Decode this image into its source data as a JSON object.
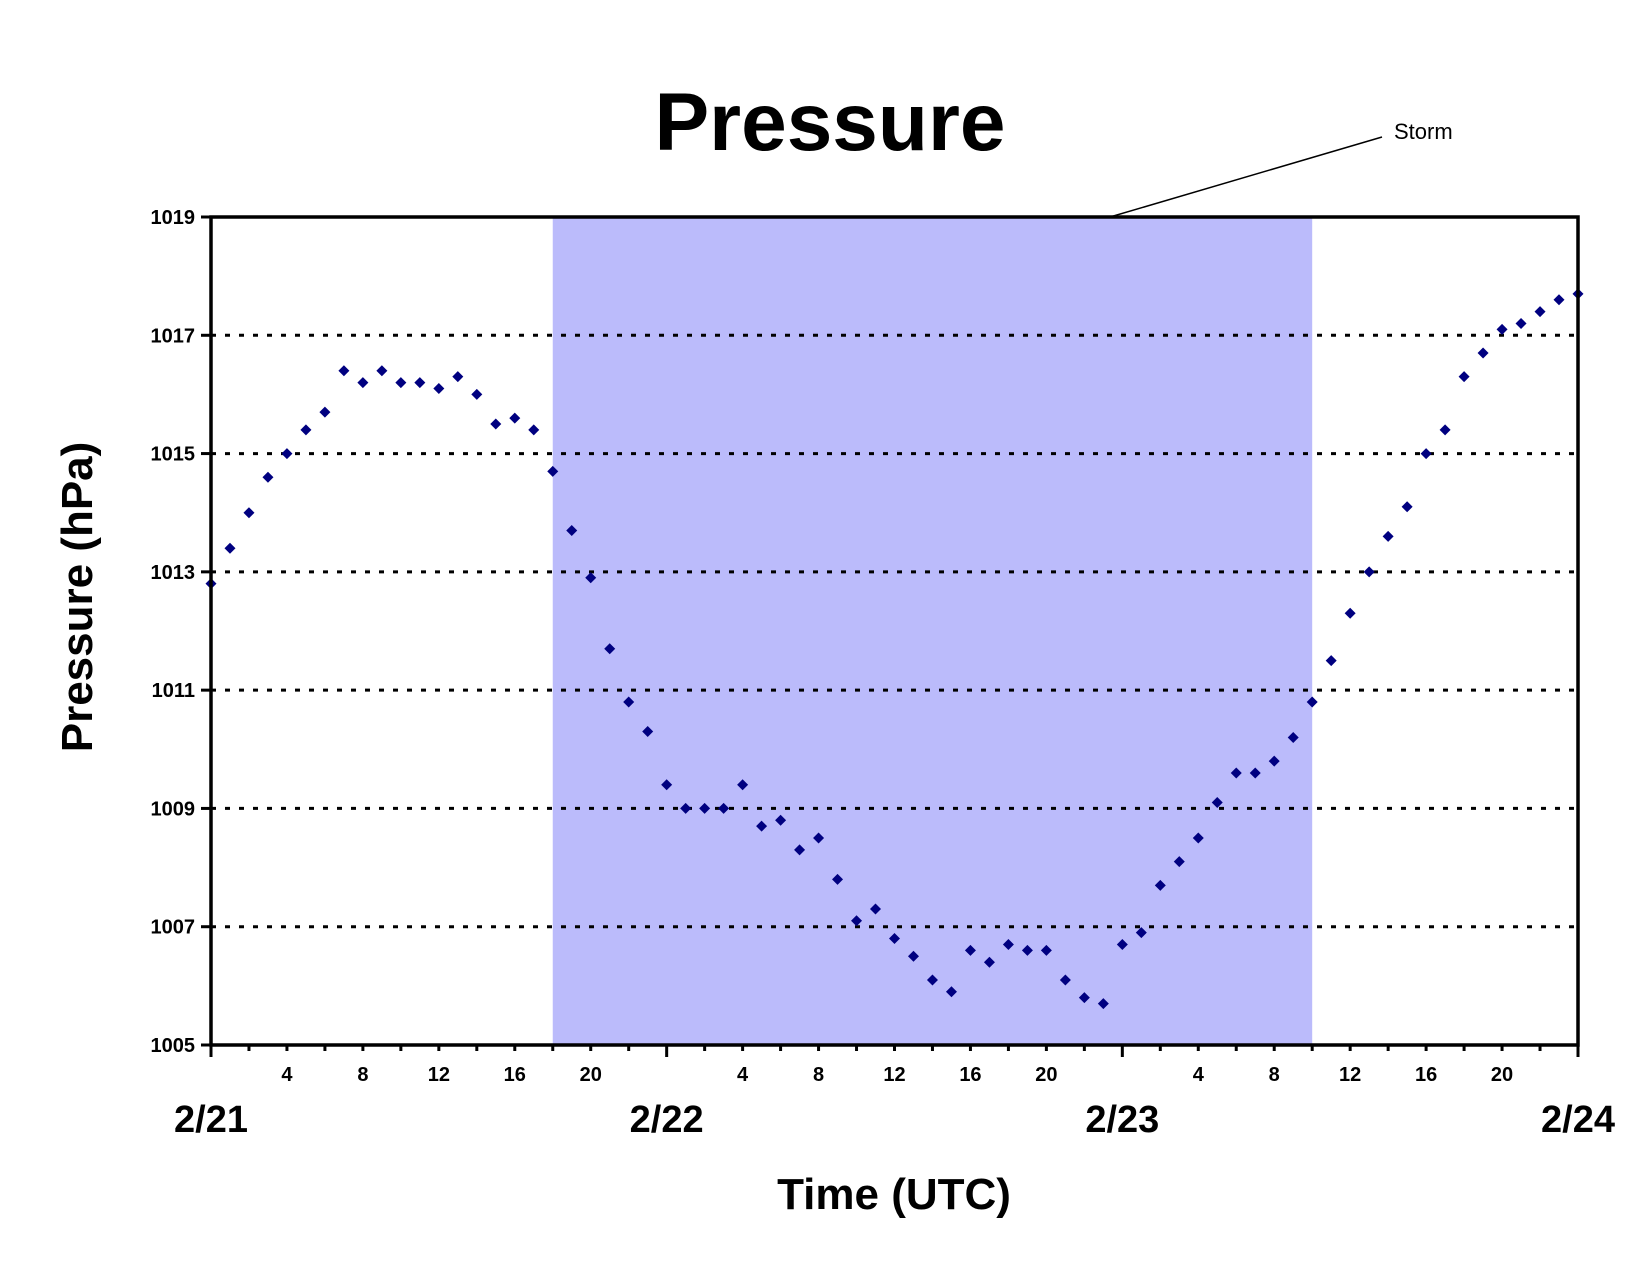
{
  "colors": {
    "storm_band": "#bbbbfb",
    "marker": "#000080",
    "axis": "#000000",
    "background": "#ffffff"
  },
  "chart_data": {
    "type": "scatter",
    "title": "Pressure",
    "xlabel": "Time (UTC)",
    "ylabel": "Pressure (hPa)",
    "ylim": [
      1005,
      1019
    ],
    "yticks": [
      1005,
      1007,
      1009,
      1011,
      1013,
      1015,
      1017,
      1019
    ],
    "grid": "horizontal dotted",
    "x_unit": "hour (UTC)",
    "xlim": [
      "2/21 00",
      "2/24 00"
    ],
    "hour_tick_labels": [
      "4",
      "8",
      "12",
      "16",
      "20"
    ],
    "date_labels": [
      "2/21",
      "2/22",
      "2/23",
      "2/24"
    ],
    "shaded_region": {
      "label": "Storm",
      "from": "2/21 18",
      "to": "2/23 10"
    },
    "series": [
      {
        "marker": "diamond",
        "points": [
          [
            "2/21 00",
            1012.8
          ],
          [
            "2/21 01",
            1013.4
          ],
          [
            "2/21 02",
            1014.0
          ],
          [
            "2/21 03",
            1014.6
          ],
          [
            "2/21 04",
            1015.0
          ],
          [
            "2/21 05",
            1015.4
          ],
          [
            "2/21 06",
            1015.7
          ],
          [
            "2/21 07",
            1016.4
          ],
          [
            "2/21 08",
            1016.2
          ],
          [
            "2/21 09",
            1016.4
          ],
          [
            "2/21 10",
            1016.2
          ],
          [
            "2/21 11",
            1016.2
          ],
          [
            "2/21 12",
            1016.1
          ],
          [
            "2/21 13",
            1016.3
          ],
          [
            "2/21 14",
            1016.0
          ],
          [
            "2/21 15",
            1015.5
          ],
          [
            "2/21 16",
            1015.6
          ],
          [
            "2/21 17",
            1015.4
          ],
          [
            "2/21 18",
            1014.7
          ],
          [
            "2/21 19",
            1013.7
          ],
          [
            "2/21 20",
            1012.9
          ],
          [
            "2/21 21",
            1011.7
          ],
          [
            "2/21 22",
            1010.8
          ],
          [
            "2/21 23",
            1010.3
          ],
          [
            "2/22 00",
            1009.4
          ],
          [
            "2/22 01",
            1009.0
          ],
          [
            "2/22 02",
            1009.0
          ],
          [
            "2/22 03",
            1009.0
          ],
          [
            "2/22 04",
            1009.4
          ],
          [
            "2/22 05",
            1008.7
          ],
          [
            "2/22 06",
            1008.8
          ],
          [
            "2/22 07",
            1008.3
          ],
          [
            "2/22 08",
            1008.5
          ],
          [
            "2/22 09",
            1007.8
          ],
          [
            "2/22 10",
            1007.1
          ],
          [
            "2/22 11",
            1007.3
          ],
          [
            "2/22 12",
            1006.8
          ],
          [
            "2/22 13",
            1006.5
          ],
          [
            "2/22 14",
            1006.1
          ],
          [
            "2/22 15",
            1005.9
          ],
          [
            "2/22 16",
            1006.6
          ],
          [
            "2/22 17",
            1006.4
          ],
          [
            "2/22 18",
            1006.7
          ],
          [
            "2/22 19",
            1006.6
          ],
          [
            "2/22 20",
            1006.6
          ],
          [
            "2/22 21",
            1006.1
          ],
          [
            "2/22 22",
            1005.8
          ],
          [
            "2/22 23",
            1005.7
          ],
          [
            "2/23 00",
            1006.7
          ],
          [
            "2/23 01",
            1006.9
          ],
          [
            "2/23 02",
            1007.7
          ],
          [
            "2/23 03",
            1008.1
          ],
          [
            "2/23 04",
            1008.5
          ],
          [
            "2/23 05",
            1009.1
          ],
          [
            "2/23 06",
            1009.6
          ],
          [
            "2/23 07",
            1009.6
          ],
          [
            "2/23 08",
            1009.8
          ],
          [
            "2/23 09",
            1010.2
          ],
          [
            "2/23 10",
            1010.8
          ],
          [
            "2/23 11",
            1011.5
          ],
          [
            "2/23 12",
            1012.3
          ],
          [
            "2/23 13",
            1013.0
          ],
          [
            "2/23 14",
            1013.6
          ],
          [
            "2/23 15",
            1014.1
          ],
          [
            "2/23 16",
            1015.0
          ],
          [
            "2/23 17",
            1015.4
          ],
          [
            "2/23 18",
            1016.3
          ],
          [
            "2/23 19",
            1016.7
          ],
          [
            "2/23 20",
            1017.1
          ],
          [
            "2/23 21",
            1017.2
          ],
          [
            "2/23 22",
            1017.4
          ],
          [
            "2/23 23",
            1017.6
          ],
          [
            "2/24 00",
            1017.7
          ]
        ]
      }
    ]
  }
}
